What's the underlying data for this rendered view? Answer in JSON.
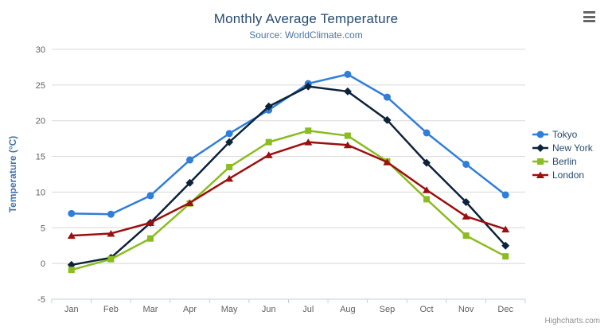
{
  "header": {
    "title": "Monthly Average Temperature",
    "subtitle": "Source: WorldClimate.com"
  },
  "chart_data": {
    "type": "line",
    "title": "Monthly Average Temperature",
    "subtitle": "Source: WorldClimate.com",
    "categories": [
      "Jan",
      "Feb",
      "Mar",
      "Apr",
      "May",
      "Jun",
      "Jul",
      "Aug",
      "Sep",
      "Oct",
      "Nov",
      "Dec"
    ],
    "series": [
      {
        "name": "Tokyo",
        "color": "#2f7ed8",
        "marker": "circle",
        "values": [
          7.0,
          6.9,
          9.5,
          14.5,
          18.2,
          21.5,
          25.2,
          26.5,
          23.3,
          18.3,
          13.9,
          9.6
        ]
      },
      {
        "name": "New York",
        "color": "#0d233a",
        "marker": "diamond",
        "values": [
          -0.2,
          0.8,
          5.7,
          11.3,
          17.0,
          22.0,
          24.8,
          24.1,
          20.1,
          14.1,
          8.6,
          2.5
        ]
      },
      {
        "name": "Berlin",
        "color": "#8bbc21",
        "marker": "square",
        "values": [
          -0.9,
          0.6,
          3.5,
          8.4,
          13.5,
          17.0,
          18.6,
          17.9,
          14.3,
          9.0,
          3.9,
          1.0
        ]
      },
      {
        "name": "London",
        "color": "#9c0f0f",
        "marker": "triangle",
        "values": [
          3.9,
          4.2,
          5.7,
          8.5,
          11.9,
          15.2,
          17.0,
          16.6,
          14.2,
          10.3,
          6.6,
          4.8
        ]
      }
    ],
    "xlabel": "",
    "ylabel": "Temperature (°C)",
    "ylim": [
      -5,
      30
    ],
    "yticks": [
      30,
      25,
      20,
      15,
      10,
      5,
      0,
      -5
    ],
    "grid": true,
    "legend_position": "right",
    "colors": {
      "gridline": "#d8d8d8",
      "axis_line": "#c0d0e0",
      "tick_label": "#606060",
      "axis_title": "#4572a7",
      "title": "#274b6d",
      "subtitle": "#4d759e",
      "legend_text": "#274b6d"
    }
  },
  "credits": {
    "label": "Highcharts.com"
  }
}
